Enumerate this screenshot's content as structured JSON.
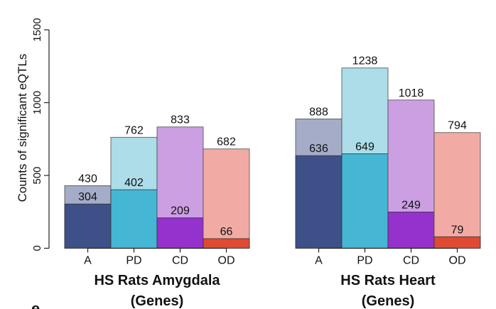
{
  "chart_data": {
    "type": "bar",
    "ylabel": "Counts of significant eQTLs",
    "ylim": [
      0,
      1500
    ],
    "yticks": [
      0,
      500,
      1000,
      1500
    ],
    "categories": [
      "A",
      "PD",
      "CD",
      "OD"
    ],
    "colors": {
      "total": [
        "#a4acc7",
        "#acdde9",
        "#cc9fe3",
        "#f2aba4"
      ],
      "sub": [
        "#3d5088",
        "#45b6d4",
        "#9531cd",
        "#e04a32"
      ]
    },
    "panels": [
      {
        "title_line1": "HS Rats Amygdala",
        "title_line2": "(Genes)",
        "totals": [
          430,
          762,
          833,
          682
        ],
        "subsets": [
          304,
          402,
          209,
          66
        ]
      },
      {
        "title_line1": "HS Rats Heart",
        "title_line2": "(Genes)",
        "totals": [
          888,
          1238,
          1018,
          794
        ],
        "subsets": [
          636,
          649,
          249,
          79
        ]
      }
    ]
  },
  "panel_letter": "e"
}
